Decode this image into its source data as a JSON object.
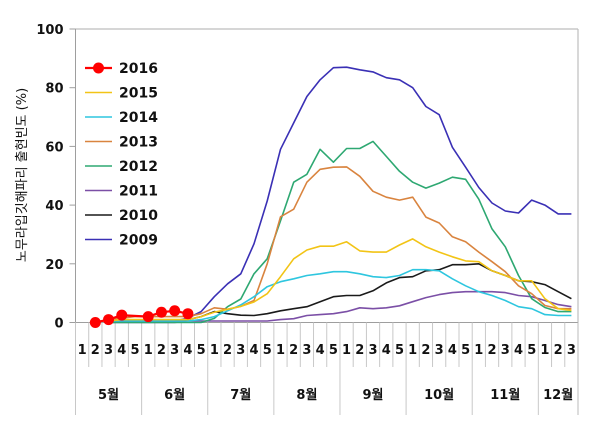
{
  "chart_data": {
    "type": "line",
    "title": "",
    "xlabel": "",
    "ylabel": "노무라입깃해파리 출현빈도 (%)",
    "ylim": [
      0,
      100
    ],
    "yticks": [
      "0",
      "20",
      "40",
      "60",
      "80",
      "100"
    ],
    "grid": false,
    "legend_position": "top-left",
    "months": [
      {
        "label": "5월",
        "weeks": [
          "1",
          "2",
          "3",
          "4",
          "5"
        ]
      },
      {
        "label": "6월",
        "weeks": [
          "1",
          "2",
          "3",
          "4",
          "5"
        ]
      },
      {
        "label": "7월",
        "weeks": [
          "1",
          "2",
          "3",
          "4",
          "5"
        ]
      },
      {
        "label": "8월",
        "weeks": [
          "1",
          "2",
          "3",
          "4",
          "5"
        ]
      },
      {
        "label": "9월",
        "weeks": [
          "1",
          "2",
          "3",
          "4",
          "5"
        ]
      },
      {
        "label": "10월",
        "weeks": [
          "1",
          "2",
          "3",
          "4",
          "5"
        ]
      },
      {
        "label": "11월",
        "weeks": [
          "1",
          "2",
          "3",
          "4",
          "5"
        ]
      },
      {
        "label": "12월",
        "weeks": [
          "1",
          "2",
          "3"
        ]
      }
    ],
    "series": [
      {
        "name": "2016",
        "color": "#ff0000",
        "marker": true,
        "values": [
          null,
          0,
          1,
          2.5,
          null,
          2,
          3.5,
          4,
          3,
          null,
          null,
          null,
          null,
          null,
          null,
          null,
          null,
          null,
          null,
          null,
          null,
          null,
          null,
          null,
          null,
          null,
          null,
          null,
          null,
          null,
          null,
          null,
          null,
          null,
          null,
          null,
          null,
          null
        ]
      },
      {
        "name": "2015",
        "color": "#f2c416",
        "marker": false,
        "values": [
          null,
          null,
          0.5,
          1,
          1,
          1,
          1,
          1,
          1,
          2,
          3.5,
          4.5,
          5.5,
          7,
          9.8,
          15.6,
          21.7,
          24.7,
          26,
          26,
          27.5,
          24.4,
          24,
          24,
          26.4,
          28.5,
          25.8,
          24,
          22.4,
          21,
          20.7,
          17.6,
          16,
          14.2,
          14.2,
          8.1,
          4.7,
          4.1
        ]
      },
      {
        "name": "2014",
        "color": "#2ec6df",
        "marker": false,
        "values": [
          null,
          null,
          0.5,
          0.5,
          0.5,
          0.5,
          0.5,
          0.5,
          0.5,
          1,
          2,
          4,
          6,
          8.8,
          12.2,
          13.9,
          14.9,
          16,
          16.6,
          17.3,
          17.3,
          16.6,
          15.6,
          15.3,
          16,
          18,
          18,
          17.6,
          14.9,
          12.5,
          10.5,
          9.2,
          7.5,
          5.4,
          4.7,
          2.7,
          2.4,
          2.4
        ]
      },
      {
        "name": "2013",
        "color": "#d9843f",
        "marker": false,
        "values": [
          null,
          null,
          1,
          1.5,
          2,
          2,
          2,
          2,
          2,
          3,
          5,
          4.5,
          5.5,
          7.5,
          20,
          36,
          38.6,
          47.8,
          52.2,
          52.9,
          53,
          49.8,
          44.7,
          42.7,
          41.7,
          42.7,
          35.9,
          33.9,
          29.2,
          27.5,
          24,
          20.7,
          17.3,
          12.5,
          9.8,
          5.8,
          4.7,
          4.7
        ]
      },
      {
        "name": "2012",
        "color": "#2ea872",
        "marker": false,
        "values": [
          null,
          null,
          0,
          0,
          0,
          0,
          0,
          0,
          0,
          0,
          1.4,
          5.4,
          8,
          16.6,
          21.7,
          34.6,
          47.8,
          50.5,
          59,
          54.6,
          59.3,
          59.3,
          61.7,
          56.6,
          51.5,
          47.8,
          45.8,
          47.5,
          49.5,
          48.8,
          42,
          31.9,
          25.8,
          16,
          8.1,
          5.1,
          3.7,
          3.7
        ]
      },
      {
        "name": "2011",
        "color": "#7b4fa6",
        "marker": false,
        "values": [
          null,
          null,
          0,
          0,
          0,
          0,
          0,
          0,
          0.5,
          0.5,
          0.5,
          0.5,
          0.5,
          0.5,
          0.5,
          1,
          1.3,
          2.4,
          2.7,
          3,
          3.7,
          5,
          4.7,
          5,
          5.7,
          7.1,
          8.5,
          9.5,
          10.2,
          10.5,
          10.5,
          10.5,
          10.2,
          9.2,
          8.8,
          7.5,
          6.1,
          5.4
        ]
      },
      {
        "name": "2010",
        "color": "#1a1a1a",
        "marker": false,
        "values": [
          null,
          null,
          0.5,
          0.5,
          0.5,
          0.5,
          0.5,
          0.5,
          1,
          2,
          3.7,
          3,
          2.5,
          2.4,
          3,
          4,
          4.7,
          5.4,
          7.1,
          8.8,
          9.2,
          9.2,
          10.8,
          13.5,
          15.3,
          15.6,
          17.6,
          18,
          19.7,
          19.7,
          20,
          17.6,
          16,
          14.2,
          13.9,
          12.9,
          10.5,
          8.1
        ]
      },
      {
        "name": "2009",
        "color": "#3a30b5",
        "marker": false,
        "values": [
          null,
          null,
          0.5,
          0.5,
          0.5,
          0.5,
          0.5,
          0.5,
          1.5,
          3.7,
          8.8,
          13.2,
          16.6,
          26.8,
          41.4,
          59,
          68,
          77,
          82.7,
          86.8,
          87,
          86.1,
          85.4,
          83.4,
          82.7,
          80,
          73.6,
          70.8,
          59.7,
          52.9,
          46,
          40.7,
          38,
          37.3,
          41.7,
          40,
          37,
          37
        ]
      }
    ]
  }
}
